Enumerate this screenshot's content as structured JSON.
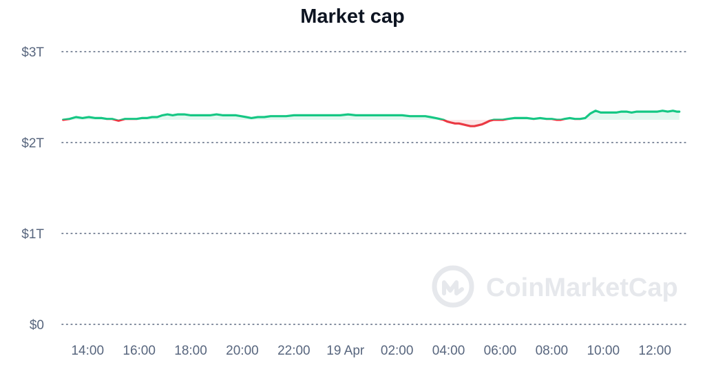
{
  "chart_data": {
    "type": "line",
    "title": "Market cap",
    "xlabel": "",
    "ylabel": "",
    "ylim": [
      0,
      3
    ],
    "y_unit": "trillion USD",
    "y_ticks": [
      {
        "value": 0,
        "label": "$0"
      },
      {
        "value": 1,
        "label": "$1T"
      },
      {
        "value": 2,
        "label": "$2T"
      },
      {
        "value": 3,
        "label": "$3T"
      }
    ],
    "x_ticks": [
      {
        "value": 14,
        "label": "14:00"
      },
      {
        "value": 16,
        "label": "16:00"
      },
      {
        "value": 18,
        "label": "18:00"
      },
      {
        "value": 20,
        "label": "20:00"
      },
      {
        "value": 22,
        "label": "22:00"
      },
      {
        "value": 24,
        "label": "19 Apr"
      },
      {
        "value": 26,
        "label": "02:00"
      },
      {
        "value": 28,
        "label": "04:00"
      },
      {
        "value": 30,
        "label": "06:00"
      },
      {
        "value": 32,
        "label": "08:00"
      },
      {
        "value": 34,
        "label": "10:00"
      },
      {
        "value": 36,
        "label": "12:00"
      }
    ],
    "xlim": [
      13,
      37
    ],
    "grid": true,
    "baseline": 2.25,
    "colors": {
      "above": "#16c784",
      "below": "#ea3943",
      "grid": "#58667e"
    },
    "x": [
      13.05,
      13.3,
      13.55,
      13.8,
      14.05,
      14.3,
      14.55,
      14.75,
      14.95,
      15.2,
      15.45,
      15.7,
      15.9,
      16.1,
      16.3,
      16.5,
      16.7,
      16.9,
      17.1,
      17.3,
      17.5,
      17.75,
      18.0,
      18.25,
      18.5,
      18.75,
      19.0,
      19.25,
      19.5,
      19.75,
      19.95,
      20.15,
      20.35,
      20.6,
      20.85,
      21.1,
      21.4,
      21.7,
      22.0,
      22.3,
      22.6,
      22.9,
      23.2,
      23.5,
      23.8,
      24.1,
      24.4,
      24.7,
      25.0,
      25.3,
      25.6,
      25.9,
      26.2,
      26.5,
      26.8,
      27.1,
      27.3,
      27.5,
      27.65,
      27.8,
      27.95,
      28.1,
      28.25,
      28.4,
      28.55,
      28.7,
      28.85,
      29.0,
      29.15,
      29.3,
      29.45,
      29.6,
      29.75,
      29.9,
      30.1,
      30.3,
      30.55,
      30.8,
      31.05,
      31.3,
      31.55,
      31.8,
      32.0,
      32.2,
      32.35,
      32.5,
      32.7,
      32.9,
      33.1,
      33.3,
      33.5,
      33.7,
      33.9,
      34.1,
      34.3,
      34.5,
      34.7,
      34.9,
      35.1,
      35.3,
      35.5,
      35.7,
      35.9,
      36.1,
      36.3,
      36.5,
      36.7,
      36.85,
      36.95
    ],
    "y": [
      2.25,
      2.26,
      2.28,
      2.27,
      2.28,
      2.27,
      2.27,
      2.26,
      2.26,
      2.24,
      2.26,
      2.26,
      2.26,
      2.27,
      2.27,
      2.28,
      2.28,
      2.3,
      2.31,
      2.3,
      2.31,
      2.31,
      2.3,
      2.3,
      2.3,
      2.3,
      2.31,
      2.3,
      2.3,
      2.3,
      2.29,
      2.28,
      2.27,
      2.28,
      2.28,
      2.29,
      2.29,
      2.29,
      2.3,
      2.3,
      2.3,
      2.3,
      2.3,
      2.3,
      2.3,
      2.31,
      2.3,
      2.3,
      2.3,
      2.3,
      2.3,
      2.3,
      2.3,
      2.29,
      2.29,
      2.29,
      2.28,
      2.27,
      2.26,
      2.25,
      2.23,
      2.22,
      2.21,
      2.21,
      2.2,
      2.19,
      2.18,
      2.18,
      2.19,
      2.2,
      2.22,
      2.24,
      2.25,
      2.25,
      2.25,
      2.26,
      2.27,
      2.27,
      2.27,
      2.26,
      2.27,
      2.26,
      2.26,
      2.25,
      2.25,
      2.26,
      2.27,
      2.26,
      2.26,
      2.27,
      2.32,
      2.35,
      2.33,
      2.33,
      2.33,
      2.33,
      2.34,
      2.34,
      2.33,
      2.34,
      2.34,
      2.34,
      2.34,
      2.34,
      2.35,
      2.34,
      2.35,
      2.34,
      2.34
    ]
  },
  "watermark": {
    "text": "CoinMarketCap",
    "icon": "coinmarketcap-logo-icon"
  }
}
